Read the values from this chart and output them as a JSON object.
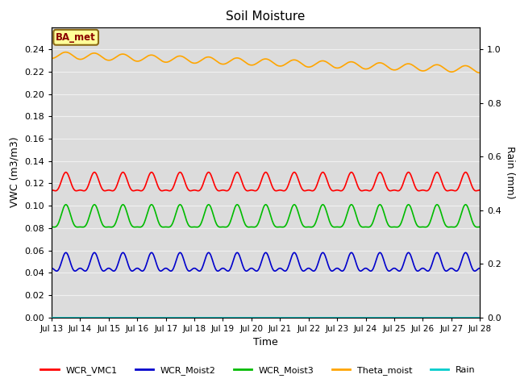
{
  "title": "Soil Moisture",
  "xlabel": "Time",
  "ylabel_left": "VWC (m3/m3)",
  "ylabel_right": "Rain (mm)",
  "xlim": [
    0,
    360
  ],
  "ylim_left": [
    0.0,
    0.26
  ],
  "ylim_right": [
    0.0,
    1.0833
  ],
  "yticks_left": [
    0.0,
    0.02,
    0.04,
    0.06,
    0.08,
    0.1,
    0.12,
    0.14,
    0.16,
    0.18,
    0.2,
    0.22,
    0.24
  ],
  "yticks_right_vals": [
    0.0,
    0.2,
    0.4,
    0.6,
    0.8,
    1.0
  ],
  "yticks_right_labels": [
    "0.0",
    "0.2",
    "0.4",
    "0.6",
    "0.8",
    "1.0"
  ],
  "xtick_positions": [
    0,
    24,
    48,
    72,
    96,
    120,
    144,
    168,
    192,
    216,
    240,
    264,
    288,
    312,
    336,
    360
  ],
  "xtick_labels": [
    "Jul 13",
    "Jul 14",
    "Jul 15",
    "Jul 16",
    "Jul 17",
    "Jul 18",
    "Jul 19",
    "Jul 20",
    "Jul 21",
    "Jul 22",
    "Jul 23",
    "Jul 24",
    "Jul 25",
    "Jul 26",
    "Jul 27",
    "Jul 28"
  ],
  "annotation_text": "BA_met",
  "annotation_color": "#8B0000",
  "annotation_bg": "#FFFF99",
  "annotation_border": "#8B6914",
  "colors": {
    "WCR_VMC1": "#FF0000",
    "WCR_Moist2": "#0000CC",
    "WCR_Moist3": "#00BB00",
    "Theta_moist": "#FFA500",
    "Rain": "#00CCCC"
  },
  "bg_color": "#DCDCDC",
  "grid_color": "#F0F0F0",
  "n_points": 721
}
